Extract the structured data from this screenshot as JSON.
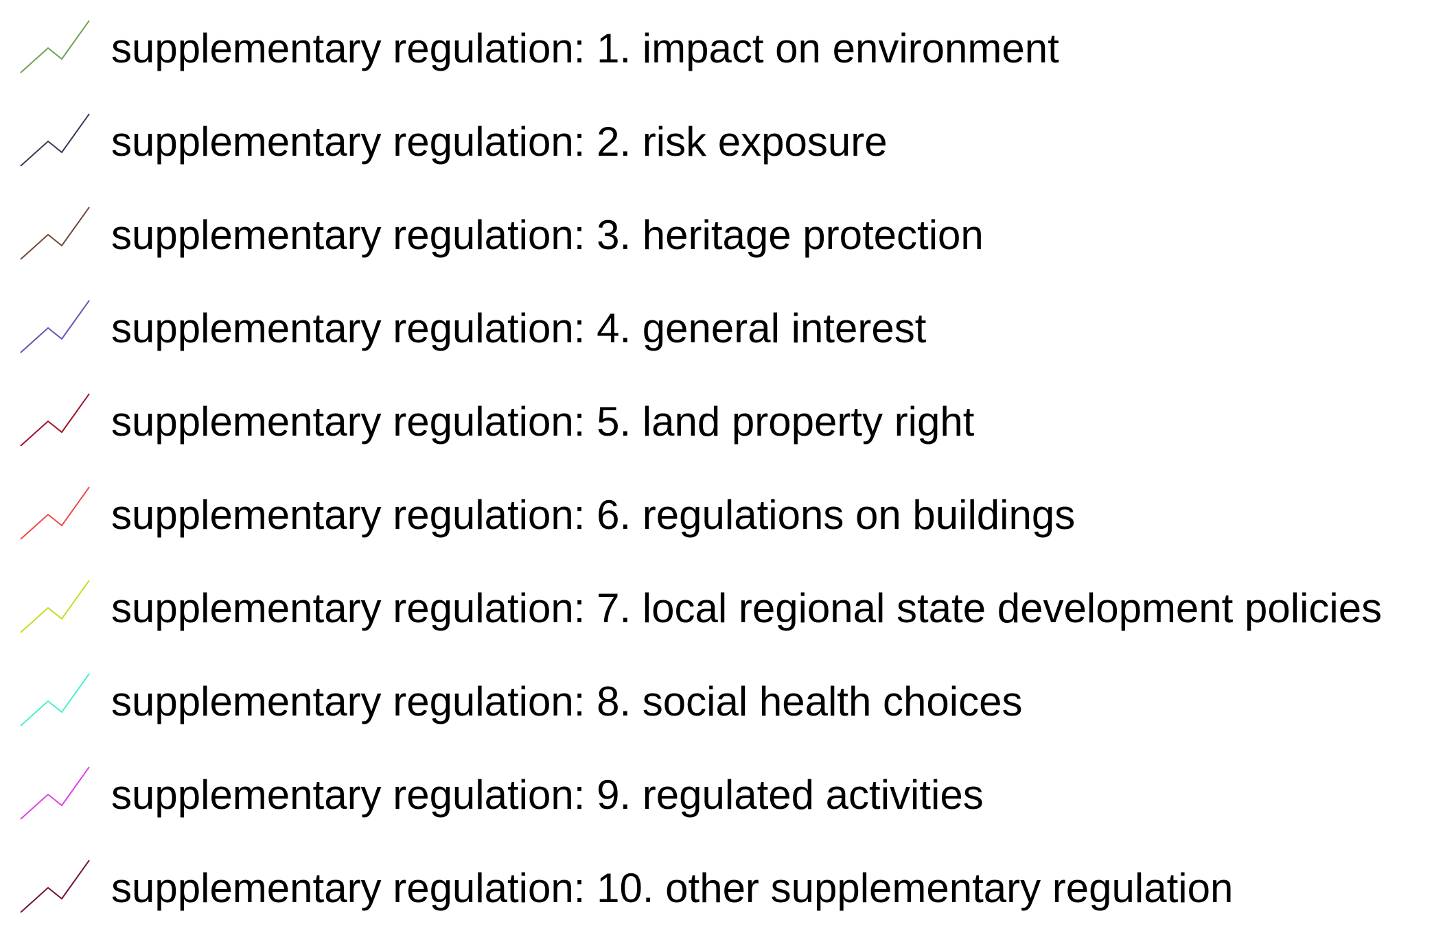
{
  "legend": {
    "items": [
      {
        "label": "supplementary regulation: 1. impact on environment",
        "color": "#70a050",
        "icon": "line-symbol-icon"
      },
      {
        "label": "supplementary regulation: 2. risk exposure",
        "color": "#383858",
        "icon": "line-symbol-icon"
      },
      {
        "label": "supplementary regulation: 3. heritage protection",
        "color": "#704838",
        "icon": "line-symbol-icon"
      },
      {
        "label": "supplementary regulation: 4. general interest",
        "color": "#6c50b0",
        "icon": "line-symbol-icon"
      },
      {
        "label": "supplementary regulation: 5. land property right",
        "color": "#a01028",
        "icon": "line-symbol-icon"
      },
      {
        "label": "supplementary regulation: 6. regulations on buildings",
        "color": "#f04848",
        "icon": "line-symbol-icon"
      },
      {
        "label": "supplementary regulation: 7. local regional state development policies",
        "color": "#c8dc20",
        "icon": "line-symbol-icon"
      },
      {
        "label": "supplementary regulation: 8. social health choices",
        "color": "#48f0d0",
        "icon": "line-symbol-icon"
      },
      {
        "label": "supplementary regulation: 9. regulated activities",
        "color": "#e040e8",
        "icon": "line-symbol-icon"
      },
      {
        "label": "supplementary regulation: 10. other supplementary regulation",
        "color": "#701040",
        "icon": "line-symbol-icon"
      }
    ]
  }
}
